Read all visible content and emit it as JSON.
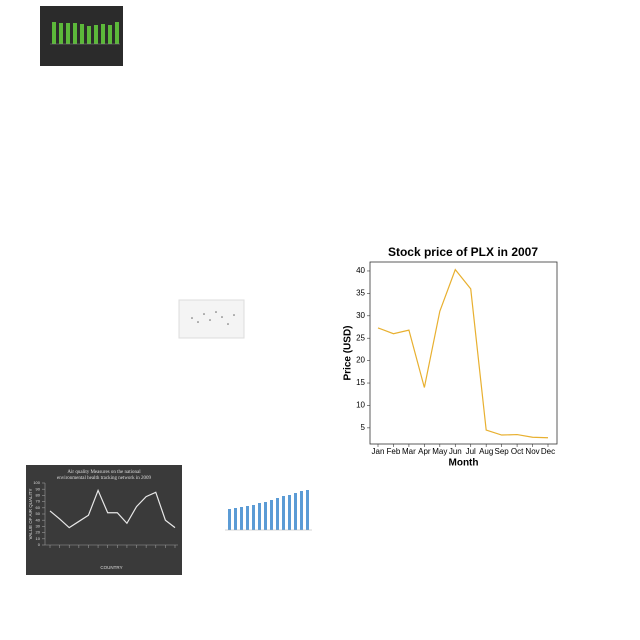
{
  "chart_data": [
    {
      "type": "line",
      "title": "Stock price of PLX in 2007",
      "xlabel": "Month",
      "ylabel": "Price (USD)",
      "categories": [
        "Jan",
        "Feb",
        "Mar",
        "Apr",
        "May",
        "Jun",
        "Jul",
        "Aug",
        "Sep",
        "Oct",
        "Nov",
        "Dec"
      ],
      "series": [
        {
          "name": "PLX",
          "color": "#e8b030",
          "values": [
            27.3,
            26,
            26.8,
            14,
            31,
            40.3,
            36,
            4.5,
            3.4,
            3.5,
            2.9,
            2.8
          ]
        }
      ],
      "ylim": [
        1.4,
        42
      ],
      "yticks": [
        5,
        10,
        15,
        20,
        25,
        30,
        35,
        40
      ],
      "grid": false,
      "background": "#ffffff"
    },
    {
      "type": "line",
      "title": "Air quality Measures on the national environmental health tracking network in 2009",
      "xlabel": "COUNTRY",
      "ylabel": "VALUE OF AIR QUALITY",
      "categories": [
        null,
        null,
        null,
        null,
        null,
        null,
        null,
        null,
        null,
        null,
        null,
        null,
        null,
        null
      ],
      "series": [
        {
          "name": "Air quality",
          "color": "#e8e8e8",
          "values": [
            55,
            42,
            28,
            38,
            48,
            88,
            52,
            52,
            35,
            62,
            78,
            85,
            40,
            28
          ]
        }
      ],
      "ylim": [
        0,
        100
      ],
      "yticks": [
        0,
        10,
        20,
        30,
        40,
        50,
        60,
        70,
        80,
        90,
        100
      ],
      "grid": false,
      "background": "#3a3a3a"
    }
  ]
}
